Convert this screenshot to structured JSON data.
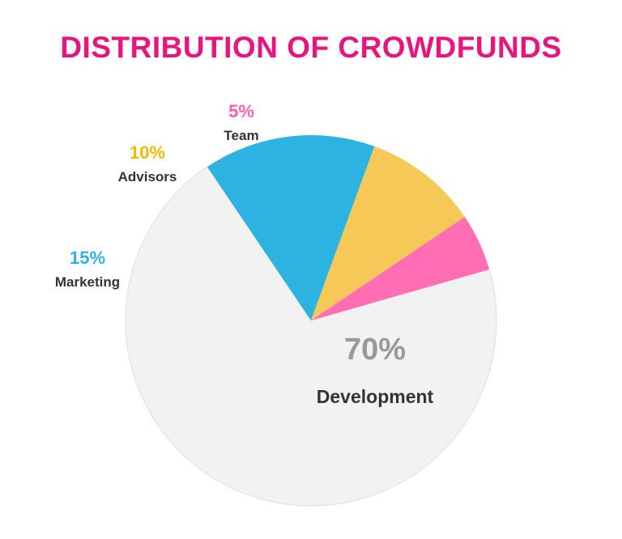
{
  "chart_data": {
    "type": "pie",
    "title": "DISTRIBUTION OF CROWDFUNDS",
    "slices": [
      {
        "label": "Development",
        "value": 70,
        "value_label": "70%",
        "color": "#f2f2f2",
        "label_color": "#999999"
      },
      {
        "label": "Marketing",
        "value": 15,
        "value_label": "15%",
        "color": "#2db3e2",
        "label_color": "#2db3e2"
      },
      {
        "label": "Advisors",
        "value": 10,
        "value_label": "10%",
        "color": "#f6c857",
        "label_color": "#f0b800"
      },
      {
        "label": "Team",
        "value": 5,
        "value_label": "5%",
        "color": "#ff6eb4",
        "label_color": "#ff5fae"
      }
    ]
  },
  "colors": {
    "title": "#e8157f",
    "outline": "#e2e2e2"
  }
}
